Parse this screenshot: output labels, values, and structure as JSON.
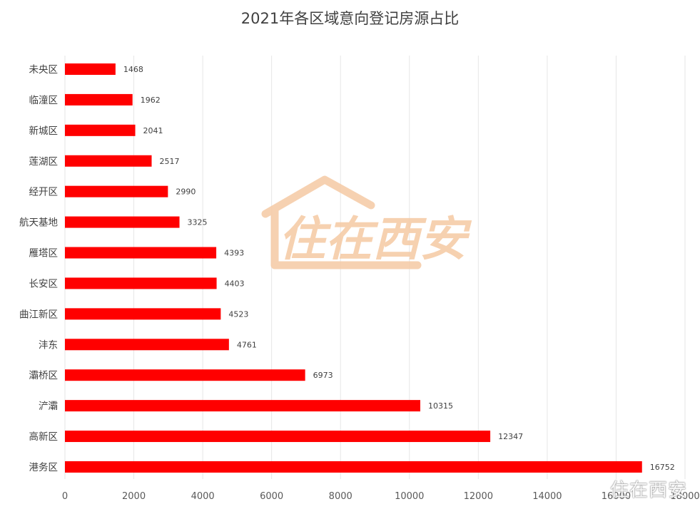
{
  "chart_data": {
    "type": "bar",
    "orientation": "horizontal",
    "title": "2021年各区域意向登记房源占比",
    "categories": [
      "未央区",
      "临潼区",
      "新城区",
      "莲湖区",
      "经开区",
      "航天基地",
      "雁塔区",
      "长安区",
      "曲江新区",
      "沣东",
      "灞桥区",
      "浐灞",
      "高新区",
      "港务区"
    ],
    "values": [
      1468,
      1962,
      2041,
      2517,
      2990,
      3325,
      4393,
      4403,
      4523,
      4761,
      6973,
      10315,
      12347,
      16752
    ],
    "xlim": [
      0,
      18000
    ],
    "x_ticks": [
      0,
      2000,
      4000,
      6000,
      8000,
      10000,
      12000,
      14000,
      16000,
      18000
    ],
    "grid": "vertical",
    "legend": "none",
    "data_labels": true,
    "bar_color": "#ff0000",
    "grid_color": "#e6e6e6"
  },
  "watermark": {
    "center_text": "住在西安",
    "corner_text": "住在西安",
    "color": "#f5c9a3"
  }
}
